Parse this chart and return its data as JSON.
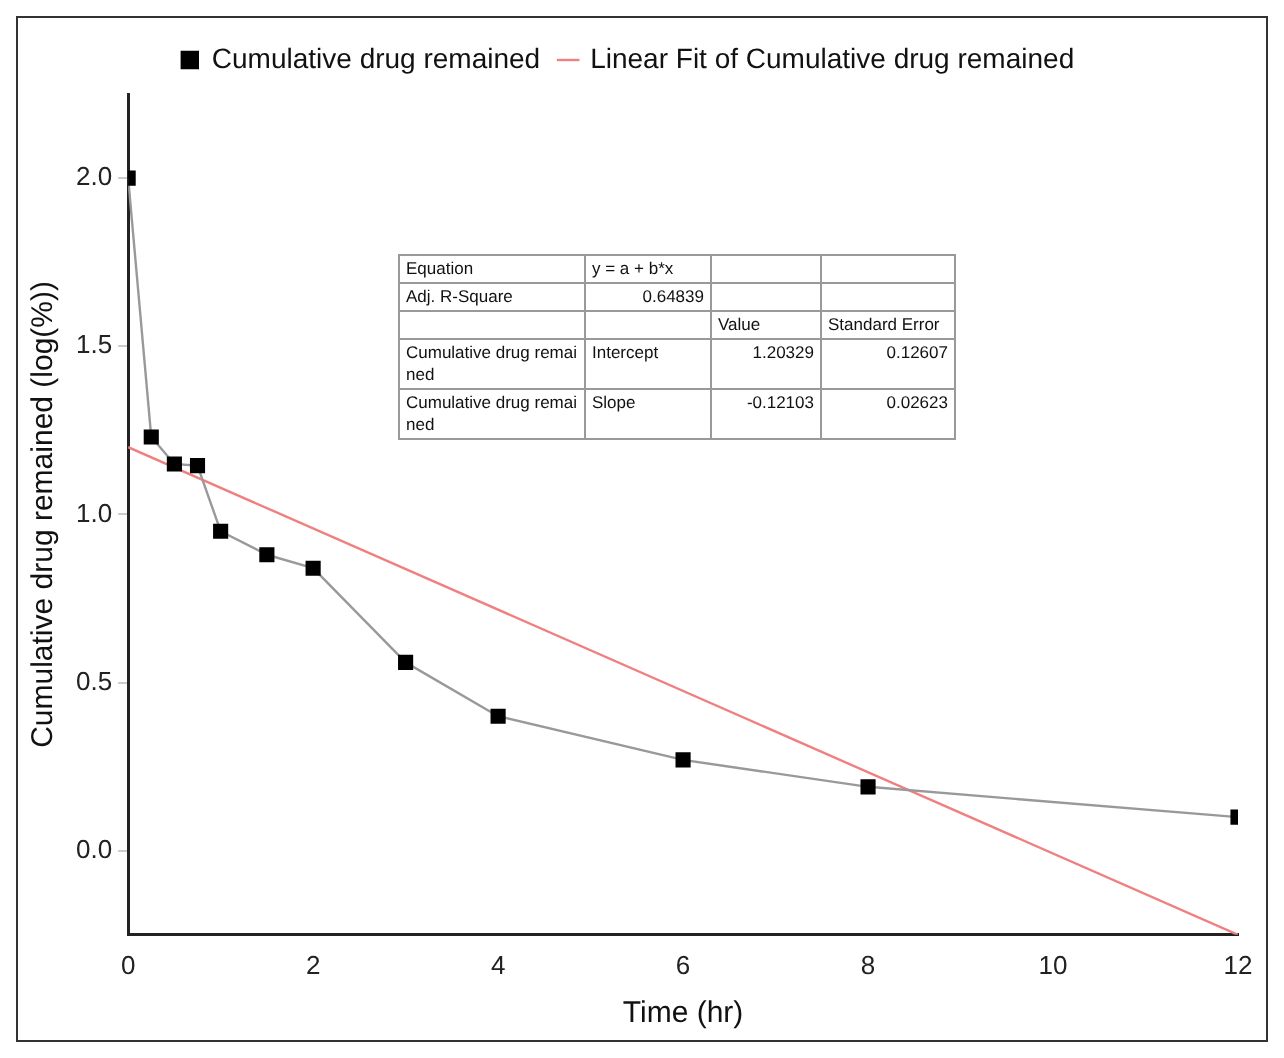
{
  "chart_data": {
    "type": "line",
    "xlabel": "Time (hr)",
    "ylabel": "Cumulative drug remained (log(%))",
    "x": [
      0,
      0.25,
      0.5,
      0.75,
      1,
      1.5,
      2,
      3,
      4,
      6,
      8,
      12
    ],
    "series": [
      {
        "name": "Cumulative drug remained",
        "color": "#000000",
        "marker": "square",
        "values": [
          2.0,
          1.23,
          1.15,
          1.145,
          0.95,
          0.88,
          0.84,
          0.56,
          0.4,
          0.27,
          0.19,
          0.1
        ]
      },
      {
        "name": "Linear Fit of Cumulative drug remained",
        "color": "#f08080",
        "marker": "none",
        "x": [
          0,
          12
        ],
        "values": [
          1.2,
          -0.25
        ]
      }
    ],
    "xlim": [
      0,
      12
    ],
    "xticks": [
      0,
      2,
      4,
      6,
      8,
      10,
      12
    ],
    "ylim": [
      -0.25,
      2.25
    ],
    "yticks": [
      {
        "value": 0,
        "label": "0.0"
      },
      {
        "value": 0.5,
        "label": "0.5"
      },
      {
        "value": 1,
        "label": "1.0"
      },
      {
        "value": 1.5,
        "label": "1.5"
      },
      {
        "value": 2,
        "label": "2.0"
      }
    ],
    "grid": false,
    "legend": "top",
    "annotations": [
      "Equation",
      "y = a + b*x",
      "Adj. R-Square",
      "0.64839",
      "Value",
      "Standard Error",
      "Cumulative drug remained",
      "Intercept",
      "1.20329",
      "0.12607",
      "Cumulative drug remained",
      "Slope",
      "-0.12103",
      "0.02623"
    ]
  }
}
